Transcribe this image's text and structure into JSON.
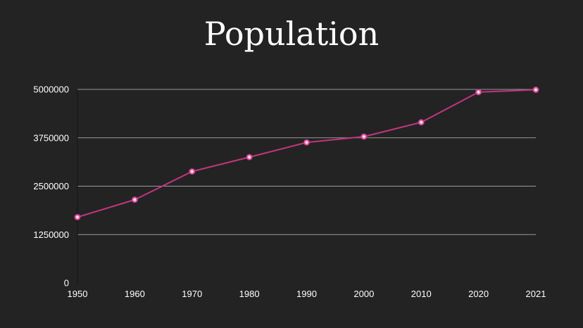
{
  "colors": {
    "background": "#232323",
    "series_line": "#c2357f",
    "marker_fill": "#e36fb0",
    "marker_center": "#ffffff",
    "gridline": "#9a9a9a",
    "text": "#ffffff"
  },
  "chart_data": {
    "type": "line",
    "title": "Population",
    "xlabel": "",
    "ylabel": "",
    "categories": [
      "1950",
      "1960",
      "1970",
      "1980",
      "1990",
      "2000",
      "2010",
      "2020",
      "2021"
    ],
    "series": [
      {
        "values": [
          1700000,
          2150000,
          2880000,
          3250000,
          3630000,
          3780000,
          4150000,
          4930000,
          4990000
        ]
      }
    ],
    "ylim": [
      0,
      5000000
    ],
    "yticks": [
      "0",
      "1250000",
      "2500000",
      "3750000",
      "5000000"
    ],
    "grid": true,
    "legend": "none"
  }
}
